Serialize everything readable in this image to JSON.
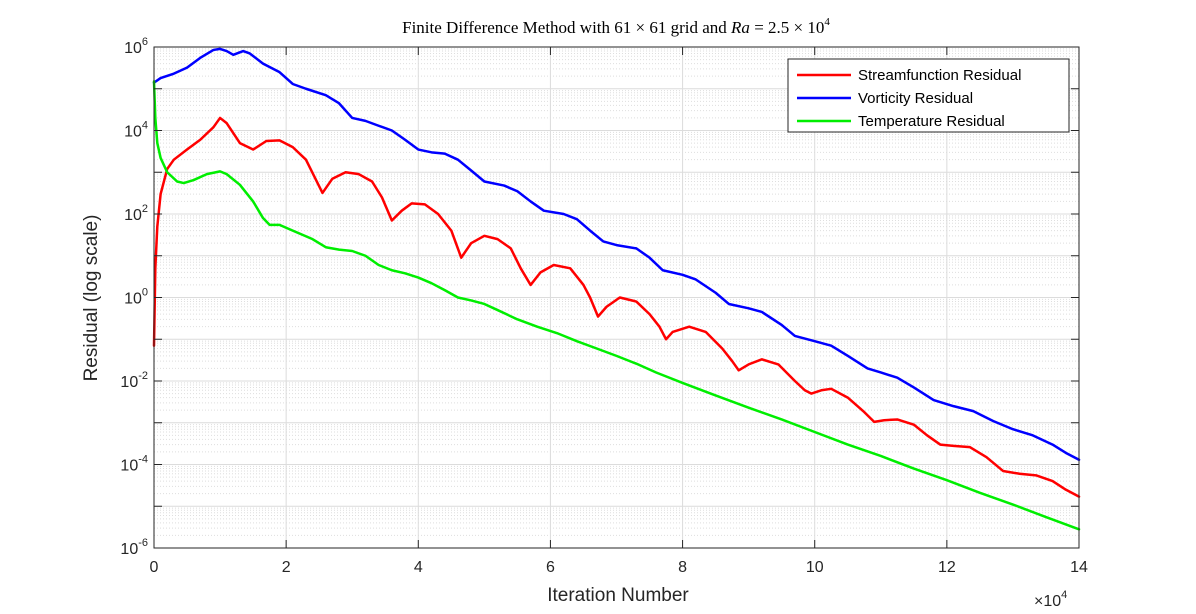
{
  "chart_data": {
    "type": "line",
    "title": "Finite Difference Method with 61 × 61 grid and Ra = 2.5 × 10⁴",
    "title_parts": {
      "prefix": "Finite Difference Method with ",
      "grid_a": "61",
      "times_1": " × ",
      "grid_b": "61",
      "middle": " grid and ",
      "ra_symbol": "Ra",
      "equals": " = ",
      "ra_mantissa": "2.5",
      "times_2": " × ",
      "ra_base": "10",
      "ra_exponent": "4"
    },
    "xlabel": "Iteration Number",
    "ylabel": "Residual (log scale)",
    "x_multiplier": {
      "base": "×10",
      "exponent": "4"
    },
    "xlim": [
      0,
      14
    ],
    "ylim": [
      1e-06,
      1000000.0
    ],
    "yscale": "log",
    "grid": true,
    "minor_grid": true,
    "legend_position": "top-right",
    "x_ticks": [
      "0",
      "2",
      "4",
      "6",
      "8",
      "10",
      "12",
      "14"
    ],
    "x_tick_values": [
      0,
      2,
      4,
      6,
      8,
      10,
      12,
      14
    ],
    "y_ticks": [
      {
        "base": "10",
        "exp": "-6",
        "value": 1e-06
      },
      {
        "base": "10",
        "exp": "-4",
        "value": 0.0001
      },
      {
        "base": "10",
        "exp": "-2",
        "value": 0.01
      },
      {
        "base": "10",
        "exp": "0",
        "value": 1
      },
      {
        "base": "10",
        "exp": "2",
        "value": 100.0
      },
      {
        "base": "10",
        "exp": "4",
        "value": 10000.0
      },
      {
        "base": "10",
        "exp": "6",
        "value": 1000000.0
      }
    ],
    "series": [
      {
        "name": "Streamfunction Residual",
        "color": "#ff0000",
        "points": [
          [
            0.0,
            0.07
          ],
          [
            0.02,
            5
          ],
          [
            0.05,
            50
          ],
          [
            0.1,
            300
          ],
          [
            0.2,
            1200
          ],
          [
            0.3,
            2000
          ],
          [
            0.5,
            3500
          ],
          [
            0.7,
            6000
          ],
          [
            0.9,
            12000
          ],
          [
            1.0,
            20000
          ],
          [
            1.1,
            15000
          ],
          [
            1.3,
            5000
          ],
          [
            1.5,
            3500
          ],
          [
            1.7,
            5600
          ],
          [
            1.9,
            5800
          ],
          [
            2.1,
            4000
          ],
          [
            2.3,
            2000
          ],
          [
            2.55,
            320
          ],
          [
            2.7,
            700
          ],
          [
            2.9,
            1000
          ],
          [
            3.1,
            900
          ],
          [
            3.3,
            600
          ],
          [
            3.45,
            250
          ],
          [
            3.6,
            70
          ],
          [
            3.75,
            120
          ],
          [
            3.9,
            180
          ],
          [
            4.1,
            170
          ],
          [
            4.3,
            100
          ],
          [
            4.5,
            40
          ],
          [
            4.65,
            9
          ],
          [
            4.8,
            20
          ],
          [
            5.0,
            30
          ],
          [
            5.2,
            25
          ],
          [
            5.4,
            15
          ],
          [
            5.55,
            5
          ],
          [
            5.7,
            2
          ],
          [
            5.85,
            4
          ],
          [
            6.05,
            6
          ],
          [
            6.3,
            5
          ],
          [
            6.5,
            2
          ],
          [
            6.6,
            1
          ],
          [
            6.72,
            0.35
          ],
          [
            6.85,
            0.6
          ],
          [
            7.05,
            1.0
          ],
          [
            7.3,
            0.8
          ],
          [
            7.5,
            0.4
          ],
          [
            7.65,
            0.2
          ],
          [
            7.75,
            0.1
          ],
          [
            7.85,
            0.15
          ],
          [
            8.1,
            0.2
          ],
          [
            8.35,
            0.15
          ],
          [
            8.6,
            0.06
          ],
          [
            8.75,
            0.03
          ],
          [
            8.85,
            0.018
          ],
          [
            9.0,
            0.025
          ],
          [
            9.2,
            0.033
          ],
          [
            9.45,
            0.025
          ],
          [
            9.7,
            0.01
          ],
          [
            9.85,
            0.006
          ],
          [
            9.95,
            0.005
          ],
          [
            10.1,
            0.006
          ],
          [
            10.25,
            0.0065
          ],
          [
            10.5,
            0.004
          ],
          [
            10.75,
            0.0018
          ],
          [
            10.9,
            0.00105
          ],
          [
            11.05,
            0.00115
          ],
          [
            11.25,
            0.0012
          ],
          [
            11.5,
            0.0009
          ],
          [
            11.7,
            0.0005
          ],
          [
            11.9,
            0.0003
          ],
          [
            12.1,
            0.00028
          ],
          [
            12.35,
            0.00026
          ],
          [
            12.6,
            0.00015
          ],
          [
            12.85,
            7e-05
          ],
          [
            13.1,
            6e-05
          ],
          [
            13.35,
            5.5e-05
          ],
          [
            13.6,
            4e-05
          ],
          [
            13.8,
            2.5e-05
          ],
          [
            14.0,
            1.7e-05
          ]
        ]
      },
      {
        "name": "Vorticity Residual",
        "color": "#0000ff",
        "points": [
          [
            0.0,
            140000
          ],
          [
            0.1,
            180000
          ],
          [
            0.3,
            230000
          ],
          [
            0.5,
            320000
          ],
          [
            0.7,
            550000
          ],
          [
            0.9,
            850000
          ],
          [
            1.0,
            900000
          ],
          [
            1.1,
            800000
          ],
          [
            1.2,
            650000
          ],
          [
            1.35,
            800000
          ],
          [
            1.45,
            700000
          ],
          [
            1.65,
            400000
          ],
          [
            1.9,
            250000
          ],
          [
            2.1,
            130000
          ],
          [
            2.3,
            100000
          ],
          [
            2.6,
            70000
          ],
          [
            2.8,
            45000
          ],
          [
            3.0,
            20000
          ],
          [
            3.2,
            17000
          ],
          [
            3.4,
            13000
          ],
          [
            3.6,
            10000
          ],
          [
            3.8,
            6000
          ],
          [
            4.0,
            3500
          ],
          [
            4.2,
            3000
          ],
          [
            4.4,
            2800
          ],
          [
            4.6,
            2000
          ],
          [
            4.8,
            1100
          ],
          [
            5.0,
            600
          ],
          [
            5.3,
            480
          ],
          [
            5.5,
            350
          ],
          [
            5.7,
            200
          ],
          [
            5.9,
            120
          ],
          [
            6.2,
            100
          ],
          [
            6.4,
            75
          ],
          [
            6.6,
            40
          ],
          [
            6.8,
            22
          ],
          [
            7.0,
            18
          ],
          [
            7.3,
            15
          ],
          [
            7.5,
            9
          ],
          [
            7.7,
            4.5
          ],
          [
            8.0,
            3.5
          ],
          [
            8.2,
            2.7
          ],
          [
            8.5,
            1.3
          ],
          [
            8.7,
            0.7
          ],
          [
            9.0,
            0.55
          ],
          [
            9.2,
            0.45
          ],
          [
            9.5,
            0.22
          ],
          [
            9.7,
            0.12
          ],
          [
            10.0,
            0.09
          ],
          [
            10.25,
            0.07
          ],
          [
            10.5,
            0.04
          ],
          [
            10.8,
            0.02
          ],
          [
            11.0,
            0.016
          ],
          [
            11.25,
            0.012
          ],
          [
            11.5,
            0.007
          ],
          [
            11.8,
            0.0035
          ],
          [
            12.1,
            0.0025
          ],
          [
            12.4,
            0.0019
          ],
          [
            12.7,
            0.0011
          ],
          [
            13.0,
            0.0007
          ],
          [
            13.3,
            0.0005
          ],
          [
            13.6,
            0.0003
          ],
          [
            13.8,
            0.00019
          ],
          [
            14.0,
            0.00013
          ]
        ]
      },
      {
        "name": "Temperature Residual",
        "color": "#00ee00",
        "points": [
          [
            0.0,
            150000
          ],
          [
            0.02,
            20000
          ],
          [
            0.05,
            5000
          ],
          [
            0.1,
            2200
          ],
          [
            0.2,
            1000
          ],
          [
            0.35,
            600
          ],
          [
            0.45,
            550
          ],
          [
            0.6,
            650
          ],
          [
            0.8,
            900
          ],
          [
            1.0,
            1050
          ],
          [
            1.1,
            900
          ],
          [
            1.3,
            500
          ],
          [
            1.5,
            200
          ],
          [
            1.65,
            80
          ],
          [
            1.75,
            55
          ],
          [
            1.9,
            55
          ],
          [
            2.1,
            40
          ],
          [
            2.4,
            25
          ],
          [
            2.6,
            16
          ],
          [
            2.8,
            14
          ],
          [
            3.0,
            13
          ],
          [
            3.2,
            10
          ],
          [
            3.4,
            6
          ],
          [
            3.6,
            4.5
          ],
          [
            3.8,
            3.8
          ],
          [
            4.0,
            3
          ],
          [
            4.2,
            2.2
          ],
          [
            4.4,
            1.5
          ],
          [
            4.6,
            1.0
          ],
          [
            4.8,
            0.85
          ],
          [
            5.0,
            0.7
          ],
          [
            5.2,
            0.5
          ],
          [
            5.5,
            0.3
          ],
          [
            5.8,
            0.2
          ],
          [
            6.1,
            0.14
          ],
          [
            6.4,
            0.09
          ],
          [
            6.7,
            0.06
          ],
          [
            7.0,
            0.04
          ],
          [
            7.3,
            0.026
          ],
          [
            7.6,
            0.016
          ],
          [
            8.0,
            0.009
          ],
          [
            8.5,
            0.0045
          ],
          [
            9.0,
            0.0023
          ],
          [
            9.5,
            0.0012
          ],
          [
            10.0,
            0.0006
          ],
          [
            10.5,
            0.0003
          ],
          [
            11.0,
            0.00016
          ],
          [
            11.5,
            8e-05
          ],
          [
            12.0,
            4.2e-05
          ],
          [
            12.5,
            2.1e-05
          ],
          [
            13.0,
            1.1e-05
          ],
          [
            13.5,
            5.5e-06
          ],
          [
            14.0,
            2.8e-06
          ]
        ]
      }
    ]
  }
}
